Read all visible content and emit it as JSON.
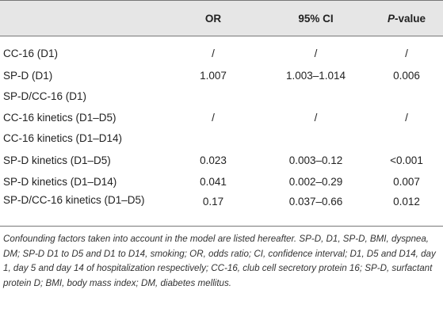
{
  "table": {
    "headers": [
      "",
      "OR",
      "95% CI",
      "P-value"
    ],
    "header_pvalue": {
      "italic": "P",
      "rest": "-value"
    },
    "rows": [
      {
        "label": "CC-16 (D1)",
        "or": "/",
        "ci": "/",
        "p": "/"
      },
      {
        "label": "SP-D (D1)",
        "or": "1.007",
        "ci": "1.003–1.014",
        "p": "0.006"
      },
      {
        "label": "SP-D/CC-16 (D1)",
        "or": "",
        "ci": "",
        "p": ""
      },
      {
        "label": "CC-16 kinetics (D1–D5)",
        "or": "/",
        "ci": "/",
        "p": "/"
      },
      {
        "label": "CC-16 kinetics (D1–D14)",
        "or": "",
        "ci": "",
        "p": ""
      },
      {
        "label": "SP-D kinetics (D1–D5)",
        "or": "0.023",
        "ci": "0.003–0.12",
        "p": "<0.001"
      },
      {
        "label": "SP-D kinetics (D1–D14)",
        "or": "0.041",
        "ci": "0.002–0.29",
        "p": "0.007"
      },
      {
        "label": "SP-D/CC-16 kinetics (D1–D5)",
        "or": "0.17",
        "ci": "0.037–0.66",
        "p": "0.012"
      }
    ]
  },
  "footnote": "Confounding factors taken into account in the model are listed hereafter. SP-D, D1, SP-D, BMI, dyspnea, DM; SP-D D1 to D5 and D1 to D14, smoking; OR, odds ratio; CI, confidence interval; D1, D5 and D14, day 1, day 5 and day 14 of hospitalization respectively; CC-16, club cell secretory protein 16; SP-D, surfactant protein D; BMI, body mass index; DM, diabetes mellitus.",
  "colors": {
    "header_bg": "#e6e6e6",
    "rule": "#777777",
    "text": "#222222"
  }
}
